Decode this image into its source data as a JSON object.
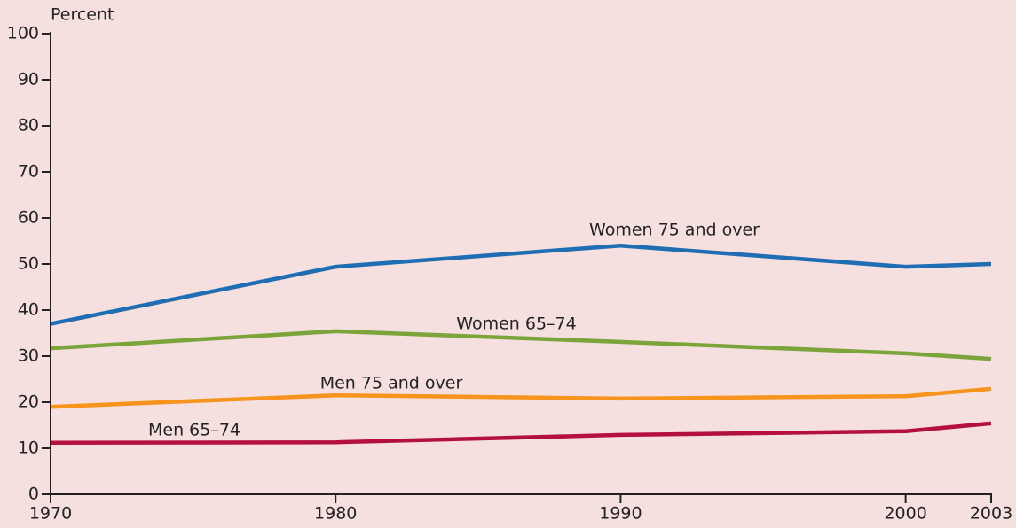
{
  "chart_data": {
    "type": "line",
    "y_label": "Percent",
    "x": [
      1970,
      1980,
      1990,
      2000,
      2003
    ],
    "xlim": [
      1970,
      2003
    ],
    "xticks": [
      1970,
      1980,
      1990,
      2000,
      2003
    ],
    "ylim": [
      0,
      100
    ],
    "yticks": [
      0,
      10,
      20,
      30,
      40,
      50,
      60,
      70,
      80,
      90,
      100
    ],
    "grid": false,
    "series": [
      {
        "name": "Women 75 and over",
        "color": "#1f6db3",
        "values": [
          37,
          49.4,
          54,
          49.4,
          50
        ]
      },
      {
        "name": "Women 65–74",
        "color": "#7ba43a",
        "values": [
          31.7,
          35.4,
          33.1,
          30.6,
          29.4
        ]
      },
      {
        "name": "Men 75 and over",
        "color": "#f7941d",
        "values": [
          19,
          21.5,
          20.8,
          21.3,
          22.9
        ]
      },
      {
        "name": "Men 65–74",
        "color": "#b3103e",
        "values": [
          11.2,
          11.3,
          12.9,
          13.7,
          15.4
        ]
      }
    ]
  }
}
